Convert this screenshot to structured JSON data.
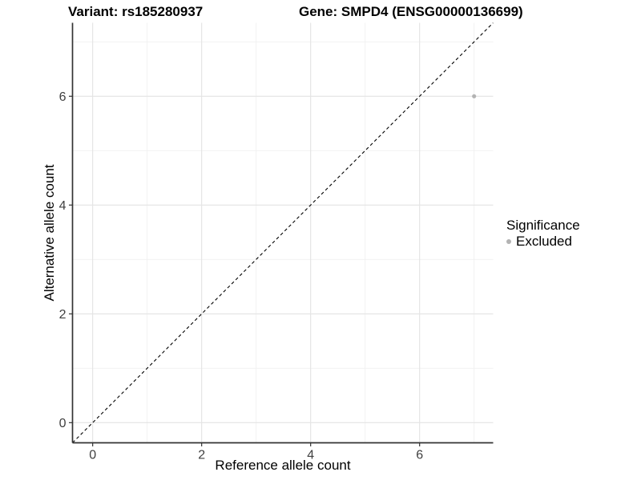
{
  "titles": {
    "variant": "Variant: rs185280937",
    "gene": "Gene: SMPD4 (ENSG00000136699)"
  },
  "chart_data": {
    "type": "scatter",
    "title_left": "Variant: rs185280937",
    "title_right": "Gene: SMPD4 (ENSG00000136699)",
    "xlabel": "Reference allele count",
    "ylabel": "Alternative allele count",
    "xlim": [
      -0.37,
      7.35
    ],
    "ylim": [
      -0.37,
      7.35
    ],
    "x_ticks": [
      0,
      2,
      4,
      6
    ],
    "y_ticks": [
      0,
      2,
      4,
      6
    ],
    "x_minor_ticks": [
      1,
      3,
      5,
      7
    ],
    "y_minor_ticks": [
      1,
      3,
      5,
      7
    ],
    "grid": true,
    "reference_line": {
      "type": "identity",
      "style": "dashed",
      "from": -0.37,
      "to": 7.35,
      "color": "#000000"
    },
    "series": [
      {
        "name": "Excluded",
        "color": "#b3b3b3",
        "points": [
          {
            "x": 7,
            "y": 6
          }
        ]
      }
    ],
    "legend": {
      "title": "Significance",
      "position": "right",
      "entries": [
        {
          "label": "Excluded",
          "color": "#b3b3b3"
        }
      ]
    }
  }
}
